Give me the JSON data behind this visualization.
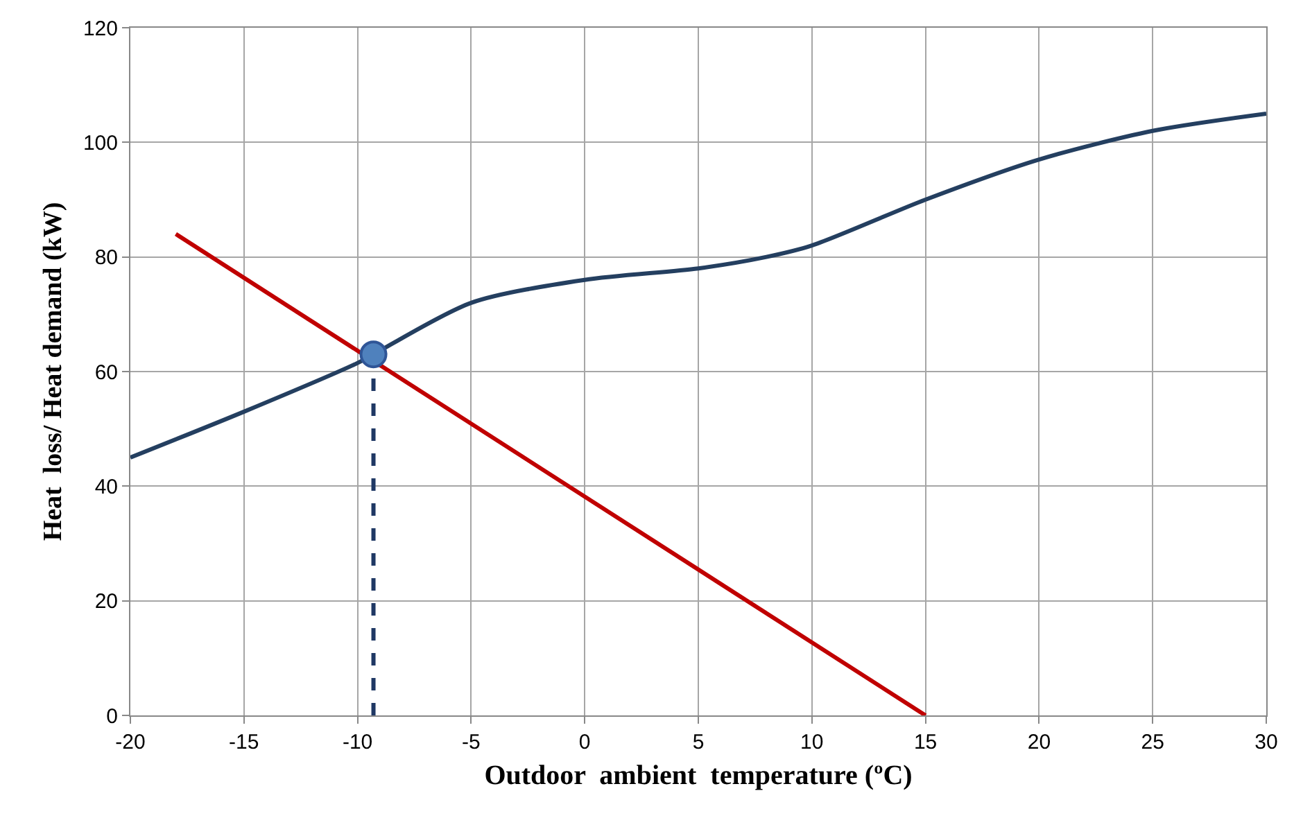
{
  "chart_data": {
    "type": "line",
    "xlabel": "Outdoor  ambient  temperature (ºC)",
    "ylabel": "Heat  loss/ Heat demand (kW)",
    "xlim": [
      -20,
      30
    ],
    "xticks": [
      -20,
      -15,
      -10,
      -5,
      0,
      5,
      10,
      15,
      20,
      25,
      30
    ],
    "ylim": [
      0,
      120
    ],
    "yticks": [
      0,
      20,
      40,
      60,
      80,
      100,
      120
    ],
    "grid": true,
    "series": [
      {
        "color": "#243f60",
        "x": [
          -20,
          -15,
          -10,
          -9.3,
          -5,
          0,
          5,
          8,
          10,
          15,
          20,
          25,
          30
        ],
        "values": [
          45,
          53,
          61.5,
          63,
          72,
          76,
          78,
          80,
          82,
          90,
          97,
          102,
          105
        ],
        "marker": "none",
        "line_style": "solid"
      },
      {
        "color": "#c00000",
        "x": [
          -18,
          15
        ],
        "values": [
          84,
          0
        ],
        "marker": "none",
        "line_style": "solid"
      },
      {
        "color": "#1f3864",
        "x": [
          -9.3,
          -9.3
        ],
        "values": [
          0,
          63
        ],
        "marker": "none",
        "line_style": "dashed"
      },
      {
        "type": "scatter",
        "color": "#4f81bd",
        "x": [
          -9.3
        ],
        "values": [
          63
        ],
        "marker": "circle"
      }
    ]
  }
}
